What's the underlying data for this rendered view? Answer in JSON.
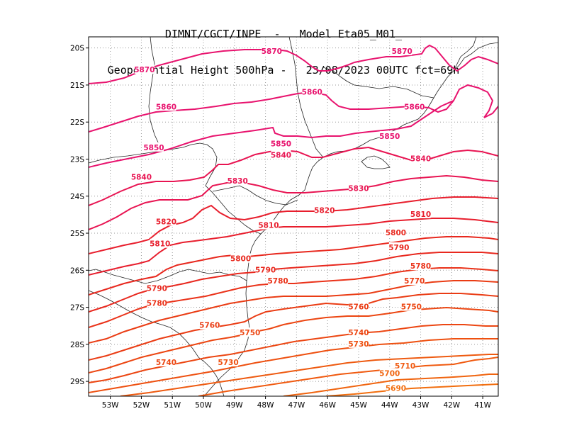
{
  "title": {
    "line1": "DIMNT/CGCT/INPE  -   Model Eta05_M01_",
    "line2": "Geopotential Height 500hPa -   23/08/2023 00UTC fct=69h"
  },
  "axes": {
    "lat_labels": [
      "20S",
      "21S",
      "22S",
      "23S",
      "24S",
      "25S",
      "26S",
      "27S",
      "28S",
      "29S"
    ],
    "lon_labels": [
      "53W",
      "52W",
      "51W",
      "50W",
      "49W",
      "48W",
      "47W",
      "46W",
      "45W",
      "44W",
      "43W",
      "42W",
      "41W"
    ]
  },
  "chart_data": {
    "type": "contour",
    "variable": "Geopotential Height 500hPa",
    "units": "gpm",
    "domain": {
      "lon_range": [
        -53.7,
        -40.5
      ],
      "lat_range": [
        -29.4,
        -19.7
      ]
    },
    "contour_interval": 10,
    "contour_levels": [
      5690,
      5700,
      5710,
      5730,
      5740,
      5750,
      5760,
      5770,
      5780,
      5790,
      5800,
      5810,
      5820,
      5830,
      5840,
      5850,
      5860,
      5870
    ],
    "contour_labels": [
      {
        "text": "5870",
        "lon": -51.9,
        "lat": -20.6,
        "color": "#e8136e"
      },
      {
        "text": "5870",
        "lon": -47.8,
        "lat": -20.1,
        "color": "#e8136e"
      },
      {
        "text": "5870",
        "lon": -43.6,
        "lat": -20.1,
        "color": "#e8136e"
      },
      {
        "text": "5860",
        "lon": -51.2,
        "lat": -21.6,
        "color": "#e8136e"
      },
      {
        "text": "5860",
        "lon": -46.5,
        "lat": -21.2,
        "color": "#e8136e"
      },
      {
        "text": "5860",
        "lon": -43.2,
        "lat": -21.6,
        "color": "#e8136e"
      },
      {
        "text": "5850",
        "lon": -51.6,
        "lat": -22.7,
        "color": "#e8136e"
      },
      {
        "text": "5850",
        "lon": -47.5,
        "lat": -22.6,
        "color": "#e8136e"
      },
      {
        "text": "5850",
        "lon": -44.0,
        "lat": -22.4,
        "color": "#e8136e"
      },
      {
        "text": "5840",
        "lon": -52.0,
        "lat": -23.5,
        "color": "#e81452"
      },
      {
        "text": "5840",
        "lon": -47.5,
        "lat": -22.9,
        "color": "#e81452"
      },
      {
        "text": "5840",
        "lon": -43.0,
        "lat": -23.0,
        "color": "#e81452"
      },
      {
        "text": "5830",
        "lon": -48.9,
        "lat": -23.6,
        "color": "#e81452"
      },
      {
        "text": "5830",
        "lon": -45.0,
        "lat": -23.8,
        "color": "#e81452"
      },
      {
        "text": "5820",
        "lon": -51.2,
        "lat": -24.7,
        "color": "#e81e2d"
      },
      {
        "text": "5820",
        "lon": -46.1,
        "lat": -24.4,
        "color": "#e81e2d"
      },
      {
        "text": "5810",
        "lon": -51.4,
        "lat": -25.3,
        "color": "#e81e2d"
      },
      {
        "text": "5810",
        "lon": -47.9,
        "lat": -24.8,
        "color": "#e81e2d"
      },
      {
        "text": "5810",
        "lon": -43.0,
        "lat": -24.5,
        "color": "#e81e2d"
      },
      {
        "text": "5800",
        "lon": -48.8,
        "lat": -25.7,
        "color": "#e8281e"
      },
      {
        "text": "5800",
        "lon": -43.8,
        "lat": -25.0,
        "color": "#e8281e"
      },
      {
        "text": "5790",
        "lon": -51.5,
        "lat": -26.5,
        "color": "#e8281e"
      },
      {
        "text": "5790",
        "lon": -48.0,
        "lat": -26.0,
        "color": "#e8281e"
      },
      {
        "text": "5790",
        "lon": -43.7,
        "lat": -25.4,
        "color": "#e8281e"
      },
      {
        "text": "5780",
        "lon": -51.5,
        "lat": -26.9,
        "color": "#ea3219"
      },
      {
        "text": "5780",
        "lon": -47.6,
        "lat": -26.3,
        "color": "#ea3219"
      },
      {
        "text": "5780",
        "lon": -43.0,
        "lat": -25.9,
        "color": "#ea3219"
      },
      {
        "text": "5770",
        "lon": -43.2,
        "lat": -26.3,
        "color": "#ea3c14"
      },
      {
        "text": "5760",
        "lon": -49.8,
        "lat": -27.5,
        "color": "#ea3c14"
      },
      {
        "text": "5760",
        "lon": -45.0,
        "lat": -27.0,
        "color": "#ea3c14"
      },
      {
        "text": "5750",
        "lon": -48.5,
        "lat": -27.7,
        "color": "#ec4612"
      },
      {
        "text": "5750",
        "lon": -43.3,
        "lat": -27.0,
        "color": "#ec4612"
      },
      {
        "text": "5740",
        "lon": -51.2,
        "lat": -28.5,
        "color": "#ec4612"
      },
      {
        "text": "5740",
        "lon": -45.0,
        "lat": -27.7,
        "color": "#ec4612"
      },
      {
        "text": "5730",
        "lon": -49.2,
        "lat": -28.5,
        "color": "#ee5010"
      },
      {
        "text": "5730",
        "lon": -45.0,
        "lat": -28.0,
        "color": "#ee5010"
      },
      {
        "text": "5710",
        "lon": -43.5,
        "lat": -28.6,
        "color": "#f05a10"
      },
      {
        "text": "5700",
        "lon": -44.0,
        "lat": -28.8,
        "color": "#f0640f"
      },
      {
        "text": "5690",
        "lon": -43.8,
        "lat": -29.2,
        "color": "#f26e0e"
      }
    ]
  }
}
